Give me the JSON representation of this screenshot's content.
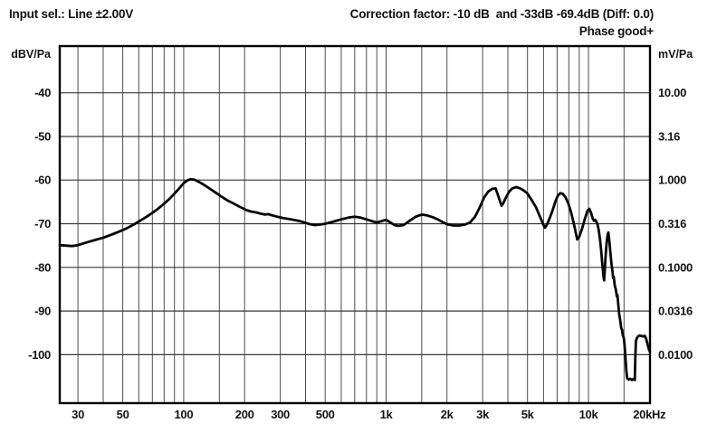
{
  "header": {
    "input_sel": "Input sel.: Line ±2.00V",
    "correction": "Correction factor: -10 dB  and -33dB -69.4dB (Diff: 0.0)",
    "phase": "Phase good+"
  },
  "chart_data": {
    "type": "line",
    "title": "",
    "y_left_label": "dBV/Pa",
    "y_right_label": "mV/Pa",
    "x_unit": "Hz",
    "x_scale": "log",
    "grid": true,
    "xlim_hz": [
      24.4,
      20150
    ],
    "ylim_dbv": [
      -111.1,
      -29.3
    ],
    "x_gridlines_hz": [
      30,
      40,
      50,
      60,
      70,
      80,
      90,
      100,
      150,
      200,
      300,
      400,
      500,
      600,
      700,
      800,
      900,
      1000,
      1500,
      2000,
      3000,
      4000,
      5000,
      6000,
      7000,
      8000,
      9000,
      10000,
      15000
    ],
    "y_gridlines_dbv": [
      -40,
      -50,
      -60,
      -70,
      -80,
      -90,
      -100
    ],
    "x_ticks": [
      {
        "f": 30,
        "label": "30"
      },
      {
        "f": 50,
        "label": "50"
      },
      {
        "f": 100,
        "label": "100"
      },
      {
        "f": 200,
        "label": "200"
      },
      {
        "f": 300,
        "label": "300"
      },
      {
        "f": 500,
        "label": "500"
      },
      {
        "f": 1000,
        "label": "1k"
      },
      {
        "f": 2000,
        "label": "2k"
      },
      {
        "f": 3000,
        "label": "3k"
      },
      {
        "f": 5000,
        "label": "5k"
      },
      {
        "f": 10000,
        "label": "10k"
      },
      {
        "f": 20000,
        "label": "20kHz"
      }
    ],
    "y_ticks_left": [
      {
        "db": -40,
        "label": "-40"
      },
      {
        "db": -50,
        "label": "-50"
      },
      {
        "db": -60,
        "label": "-60"
      },
      {
        "db": -70,
        "label": "-70"
      },
      {
        "db": -80,
        "label": "-80"
      },
      {
        "db": -90,
        "label": "-90"
      },
      {
        "db": -100,
        "label": "-100"
      }
    ],
    "y_ticks_right": [
      {
        "db": -40,
        "label": "10.00"
      },
      {
        "db": -50,
        "label": "3.16"
      },
      {
        "db": -60,
        "label": "1.000"
      },
      {
        "db": -70,
        "label": "0.316"
      },
      {
        "db": -80,
        "label": "0.1000"
      },
      {
        "db": -90,
        "label": "0.0316"
      },
      {
        "db": -100,
        "label": "0.0100"
      }
    ],
    "series": [
      {
        "name": "frequency-response",
        "color": "#070707",
        "points": [
          [
            24.4,
            -74.9
          ],
          [
            26,
            -75.0
          ],
          [
            28,
            -75.1
          ],
          [
            30,
            -74.9
          ],
          [
            33,
            -74.3
          ],
          [
            36,
            -73.8
          ],
          [
            40,
            -73.2
          ],
          [
            44,
            -72.5
          ],
          [
            48,
            -71.8
          ],
          [
            52,
            -71.1
          ],
          [
            56,
            -70.3
          ],
          [
            60,
            -69.5
          ],
          [
            65,
            -68.5
          ],
          [
            70,
            -67.5
          ],
          [
            75,
            -66.5
          ],
          [
            80,
            -65.4
          ],
          [
            85,
            -64.3
          ],
          [
            90,
            -63.1
          ],
          [
            95,
            -61.9
          ],
          [
            100,
            -60.7
          ],
          [
            104,
            -60.1
          ],
          [
            108,
            -59.8
          ],
          [
            113,
            -59.9
          ],
          [
            120,
            -60.5
          ],
          [
            128,
            -61.3
          ],
          [
            136,
            -62.1
          ],
          [
            145,
            -63.0
          ],
          [
            155,
            -63.9
          ],
          [
            165,
            -64.7
          ],
          [
            175,
            -65.3
          ],
          [
            185,
            -65.9
          ],
          [
            195,
            -66.4
          ],
          [
            205,
            -66.9
          ],
          [
            215,
            -67.2
          ],
          [
            228,
            -67.4
          ],
          [
            240,
            -67.7
          ],
          [
            252,
            -67.9
          ],
          [
            262,
            -67.8
          ],
          [
            275,
            -68.1
          ],
          [
            290,
            -68.4
          ],
          [
            310,
            -68.7
          ],
          [
            330,
            -68.9
          ],
          [
            350,
            -69.1
          ],
          [
            375,
            -69.4
          ],
          [
            400,
            -69.8
          ],
          [
            420,
            -70.1
          ],
          [
            445,
            -70.3
          ],
          [
            470,
            -70.2
          ],
          [
            500,
            -70.0
          ],
          [
            530,
            -69.7
          ],
          [
            560,
            -69.4
          ],
          [
            600,
            -69.0
          ],
          [
            650,
            -68.6
          ],
          [
            700,
            -68.4
          ],
          [
            750,
            -68.6
          ],
          [
            800,
            -69.0
          ],
          [
            850,
            -69.4
          ],
          [
            900,
            -69.7
          ],
          [
            950,
            -69.4
          ],
          [
            1000,
            -69.1
          ],
          [
            1050,
            -69.7
          ],
          [
            1100,
            -70.3
          ],
          [
            1150,
            -70.5
          ],
          [
            1220,
            -70.3
          ],
          [
            1300,
            -69.4
          ],
          [
            1400,
            -68.4
          ],
          [
            1500,
            -67.9
          ],
          [
            1600,
            -68.1
          ],
          [
            1700,
            -68.5
          ],
          [
            1800,
            -69.0
          ],
          [
            1900,
            -69.6
          ],
          [
            2000,
            -70.1
          ],
          [
            2150,
            -70.4
          ],
          [
            2300,
            -70.4
          ],
          [
            2450,
            -70.2
          ],
          [
            2600,
            -69.7
          ],
          [
            2750,
            -68.4
          ],
          [
            2900,
            -66.3
          ],
          [
            3050,
            -64.0
          ],
          [
            3200,
            -62.6
          ],
          [
            3350,
            -62.0
          ],
          [
            3480,
            -61.9
          ],
          [
            3600,
            -63.9
          ],
          [
            3720,
            -65.9
          ],
          [
            3800,
            -65.2
          ],
          [
            3900,
            -64.1
          ],
          [
            4050,
            -62.7
          ],
          [
            4200,
            -61.9
          ],
          [
            4400,
            -61.6
          ],
          [
            4600,
            -61.9
          ],
          [
            4800,
            -62.4
          ],
          [
            5000,
            -63.1
          ],
          [
            5250,
            -64.6
          ],
          [
            5500,
            -66.2
          ],
          [
            5750,
            -68.3
          ],
          [
            6000,
            -70.3
          ],
          [
            6100,
            -70.9
          ],
          [
            6250,
            -70.1
          ],
          [
            6450,
            -68.6
          ],
          [
            6650,
            -66.9
          ],
          [
            6850,
            -65.0
          ],
          [
            7050,
            -63.6
          ],
          [
            7250,
            -63.0
          ],
          [
            7450,
            -63.1
          ],
          [
            7700,
            -63.9
          ],
          [
            7950,
            -65.3
          ],
          [
            8200,
            -67.3
          ],
          [
            8500,
            -70.3
          ],
          [
            8800,
            -73.6
          ],
          [
            9000,
            -73.0
          ],
          [
            9300,
            -71.2
          ],
          [
            9600,
            -68.9
          ],
          [
            9900,
            -67.0
          ],
          [
            10100,
            -66.6
          ],
          [
            10300,
            -67.5
          ],
          [
            10500,
            -68.8
          ],
          [
            10650,
            -69.3
          ],
          [
            10800,
            -69.1
          ],
          [
            10950,
            -69.6
          ],
          [
            11100,
            -70.2
          ],
          [
            11250,
            -71.5
          ],
          [
            11400,
            -73.5
          ],
          [
            11550,
            -76.0
          ],
          [
            11700,
            -79.0
          ],
          [
            11850,
            -81.8
          ],
          [
            11950,
            -83.0
          ],
          [
            12050,
            -80.5
          ],
          [
            12150,
            -77.5
          ],
          [
            12300,
            -74.3
          ],
          [
            12450,
            -72.4
          ],
          [
            12550,
            -72.0
          ],
          [
            12700,
            -74.2
          ],
          [
            12850,
            -76.8
          ],
          [
            13000,
            -79.3
          ],
          [
            13150,
            -81.0
          ],
          [
            13250,
            -82.5
          ],
          [
            13350,
            -82.2
          ],
          [
            13500,
            -84.2
          ],
          [
            13650,
            -85.0
          ],
          [
            13800,
            -86.6
          ],
          [
            13900,
            -86.3
          ],
          [
            14050,
            -88.6
          ],
          [
            14200,
            -90.8
          ],
          [
            14350,
            -92.0
          ],
          [
            14500,
            -93.8
          ],
          [
            14650,
            -94.3
          ],
          [
            14800,
            -95.6
          ],
          [
            14950,
            -96.0
          ],
          [
            15100,
            -98.0
          ],
          [
            15250,
            -101.0
          ],
          [
            15400,
            -103.8
          ],
          [
            15550,
            -105.4
          ],
          [
            15800,
            -105.7
          ],
          [
            16100,
            -105.5
          ],
          [
            16400,
            -105.8
          ],
          [
            16700,
            -105.6
          ],
          [
            16950,
            -105.8
          ],
          [
            17050,
            -100.5
          ],
          [
            17150,
            -96.9
          ],
          [
            17350,
            -96.2
          ],
          [
            17600,
            -95.8
          ],
          [
            17900,
            -95.6
          ],
          [
            18200,
            -95.7
          ],
          [
            18600,
            -95.8
          ],
          [
            19000,
            -95.7
          ],
          [
            19300,
            -96.4
          ],
          [
            19600,
            -97.6
          ],
          [
            19900,
            -98.8
          ],
          [
            20100,
            -99.3
          ]
        ]
      }
    ]
  },
  "colors": {
    "background": "#ffffff",
    "text": "#141414",
    "grid_vertical": "#4e4e4e",
    "grid_horizontal": "#383838",
    "plot_border": "#000000",
    "curve": "#070707"
  }
}
